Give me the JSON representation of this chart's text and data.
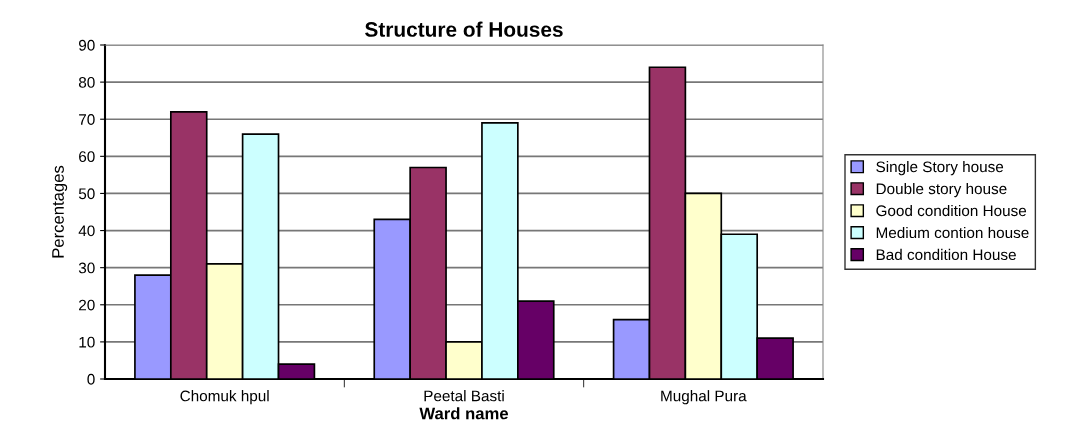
{
  "chart_data": {
    "type": "bar",
    "title": "Structure of Houses",
    "xlabel": "Ward name",
    "ylabel": "Percentages",
    "categories": [
      "Chomuk hpul",
      "Peetal Basti",
      "Mughal Pura"
    ],
    "series": [
      {
        "name": "Single Story house",
        "color": "#9999ff",
        "values": [
          28,
          43,
          16
        ]
      },
      {
        "name": "Double story house",
        "color": "#993366",
        "values": [
          72,
          57,
          84
        ]
      },
      {
        "name": "Good condition House",
        "color": "#ffffcc",
        "values": [
          31,
          10,
          50
        ]
      },
      {
        "name": "Medium contion house",
        "color": "#ccffff",
        "values": [
          66,
          69,
          39
        ]
      },
      {
        "name": "Bad condition House",
        "color": "#660066",
        "values": [
          4,
          21,
          11
        ]
      }
    ],
    "ylim": [
      0,
      90
    ],
    "yticks": [
      0,
      10,
      20,
      30,
      40,
      50,
      60,
      70,
      80,
      90
    ],
    "grid": "y",
    "legend": "right"
  }
}
